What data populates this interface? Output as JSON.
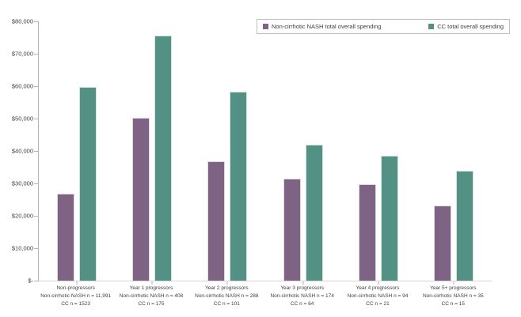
{
  "chart_data": {
    "type": "bar",
    "title": "",
    "xlabel": "",
    "ylabel": "",
    "ylim": [
      0,
      80000
    ],
    "ytick_step": 10000,
    "ytick_labels": [
      "$-",
      "$10,000",
      "$20,000",
      "$30,000",
      "$40,000",
      "$50,000",
      "$60,000",
      "$70,000",
      "$80,000"
    ],
    "grid": false,
    "legend_position": "top-right",
    "categories": [
      {
        "line1": "Non-progressors",
        "line2": "Non-cirrhotic NASH n = 11,991",
        "line3": "CC n = 1523"
      },
      {
        "line1": "Year 1 progressors",
        "line2": "Non-cirrhotic NASH n = 408",
        "line3": "CC n = 175"
      },
      {
        "line1": "Year 2 progressors",
        "line2": "Non-cirrhotic NASH n = 288",
        "line3": "CC n = 101"
      },
      {
        "line1": "Year 3 progressors",
        "line2": "Non-cirrhotic NASH n = 174",
        "line3": "CC n = 64"
      },
      {
        "line1": "Year 4 progressors",
        "line2": "Non-cirrhotic NASH n = 94",
        "line3": "CC n = 21"
      },
      {
        "line1": "Year 5+ progressors",
        "line2": "Non-cirrhotic NASH n = 35",
        "line3": "CC n = 15"
      }
    ],
    "series": [
      {
        "name": "Non-cirrhotic NASH total overall spending",
        "color": "#7E6384",
        "values": [
          26800,
          50300,
          36800,
          31500,
          29800,
          23200
        ]
      },
      {
        "name": "CC total overall spending",
        "color": "#529184",
        "values": [
          59800,
          75700,
          58300,
          42000,
          38600,
          34000
        ]
      }
    ],
    "colors": {
      "axis_line": "#b3b3b3",
      "baseline": "#d6d6d6",
      "text": "#404040",
      "legend_border": "#bfbfbf"
    }
  }
}
